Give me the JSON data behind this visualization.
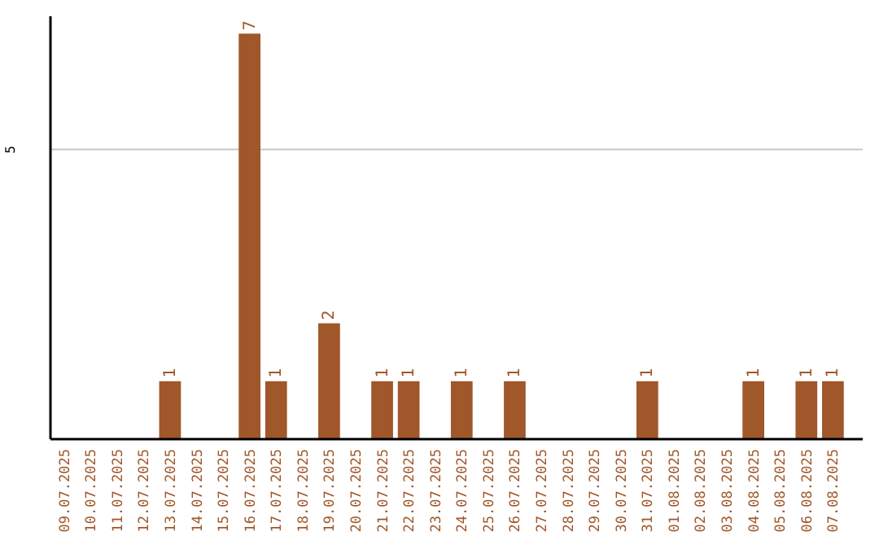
{
  "chart_data": {
    "type": "bar",
    "categories": [
      "09.07.2025",
      "10.07.2025",
      "11.07.2025",
      "12.07.2025",
      "13.07.2025",
      "14.07.2025",
      "15.07.2025",
      "16.07.2025",
      "17.07.2025",
      "18.07.2025",
      "19.07.2025",
      "20.07.2025",
      "21.07.2025",
      "22.07.2025",
      "23.07.2025",
      "24.07.2025",
      "25.07.2025",
      "26.07.2025",
      "27.07.2025",
      "28.07.2025",
      "29.07.2025",
      "30.07.2025",
      "31.07.2025",
      "01.08.2025",
      "02.08.2025",
      "03.08.2025",
      "04.08.2025",
      "05.08.2025",
      "06.08.2025",
      "07.08.2025"
    ],
    "values": [
      0,
      0,
      0,
      0,
      1,
      0,
      0,
      7,
      1,
      0,
      2,
      0,
      1,
      1,
      0,
      1,
      0,
      1,
      0,
      0,
      0,
      0,
      1,
      0,
      0,
      0,
      1,
      0,
      1,
      1
    ],
    "value_labels": [
      null,
      null,
      null,
      null,
      "1",
      null,
      null,
      "7",
      "1",
      null,
      "2",
      null,
      "1",
      "1",
      null,
      "1",
      null,
      "1",
      null,
      null,
      null,
      null,
      "1",
      null,
      null,
      null,
      "1",
      null,
      "1",
      "1"
    ],
    "color": "#a0572a",
    "ylim": [
      0,
      7.3
    ],
    "yticks": [
      5
    ],
    "grid": "y"
  }
}
